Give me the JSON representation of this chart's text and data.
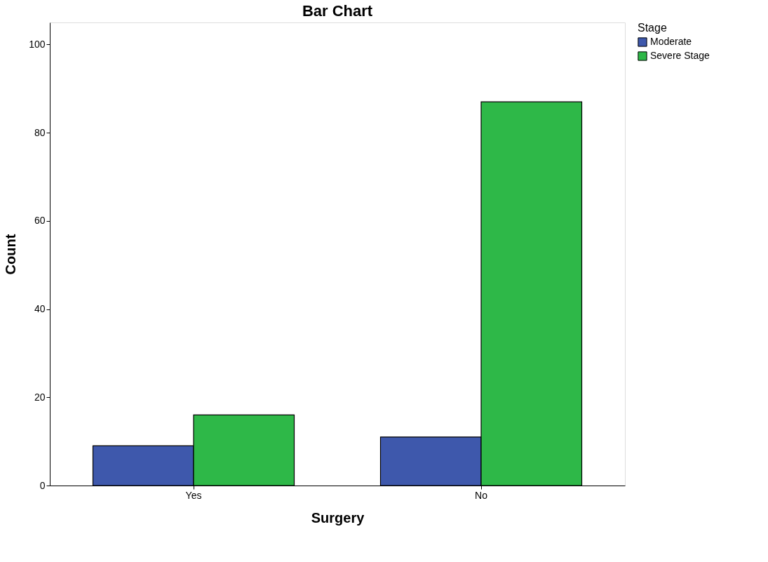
{
  "chart_data": {
    "type": "bar",
    "title": "Bar Chart",
    "xlabel": "Surgery",
    "ylabel": "Count",
    "legend_title": "Stage",
    "categories": [
      "Yes",
      "No"
    ],
    "series": [
      {
        "name": "Moderate",
        "color": "#3e58ac",
        "values": [
          9,
          11
        ]
      },
      {
        "name": "Severe Stage",
        "color": "#2eb848",
        "values": [
          16,
          87
        ]
      }
    ],
    "ylim": [
      0,
      105
    ],
    "yticks": [
      0,
      20,
      40,
      60,
      80,
      100
    ],
    "grid": false,
    "legend": "top right"
  }
}
